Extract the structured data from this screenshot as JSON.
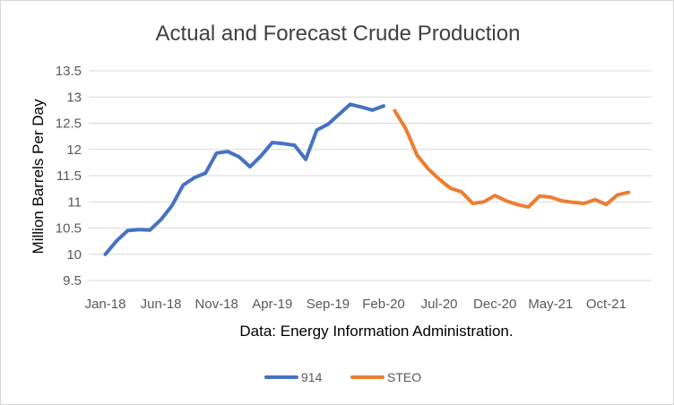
{
  "chart_data": {
    "type": "line",
    "title": "Actual and Forecast Crude Production",
    "xlabel": "Data: Energy Information Administration.",
    "ylabel": "Million Barrels Per Day",
    "ylim": [
      9.5,
      13.5
    ],
    "y_ticks": [
      "9.5",
      "10",
      "10.5",
      "11",
      "11.5",
      "12",
      "12.5",
      "13",
      "13.5"
    ],
    "x_ticks": [
      "Jan-18",
      "Jun-18",
      "Nov-18",
      "Apr-19",
      "Sep-19",
      "Feb-20",
      "Jul-20",
      "Dec-20",
      "May-21",
      "Oct-21"
    ],
    "grid": true,
    "legend_position": "bottom",
    "series": [
      {
        "name": "914",
        "color": "#4472c4",
        "x": [
          "Jan-18",
          "Feb-18",
          "Mar-18",
          "Apr-18",
          "May-18",
          "Jun-18",
          "Jul-18",
          "Aug-18",
          "Sep-18",
          "Oct-18",
          "Nov-18",
          "Dec-18",
          "Jan-19",
          "Feb-19",
          "Mar-19",
          "Apr-19",
          "May-19",
          "Jun-19",
          "Jul-19",
          "Aug-19",
          "Sep-19",
          "Oct-19",
          "Nov-19",
          "Dec-19",
          "Jan-20",
          "Feb-20"
        ],
        "values": [
          10.0,
          10.25,
          10.45,
          10.47,
          10.46,
          10.66,
          10.93,
          11.32,
          11.46,
          11.55,
          11.93,
          11.96,
          11.86,
          11.67,
          11.88,
          12.13,
          12.11,
          12.08,
          11.81,
          12.37,
          12.48,
          12.67,
          12.86,
          12.81,
          12.75,
          12.83
        ]
      },
      {
        "name": "STEO",
        "color": "#ed7d31",
        "x": [
          "Mar-20",
          "Apr-20",
          "May-20",
          "Jun-20",
          "Jul-20",
          "Aug-20",
          "Sep-20",
          "Oct-20",
          "Nov-20",
          "Dec-20",
          "Jan-21",
          "Feb-21",
          "Mar-21",
          "Apr-21",
          "May-21",
          "Jun-21",
          "Jul-21",
          "Aug-21",
          "Sep-21",
          "Oct-21",
          "Nov-21",
          "Dec-21"
        ],
        "values": [
          12.74,
          12.39,
          11.89,
          11.63,
          11.43,
          11.26,
          11.19,
          10.97,
          11.0,
          11.12,
          11.02,
          10.95,
          10.9,
          11.11,
          11.09,
          11.02,
          10.99,
          10.97,
          11.04,
          10.95,
          11.13,
          11.18
        ]
      }
    ]
  }
}
